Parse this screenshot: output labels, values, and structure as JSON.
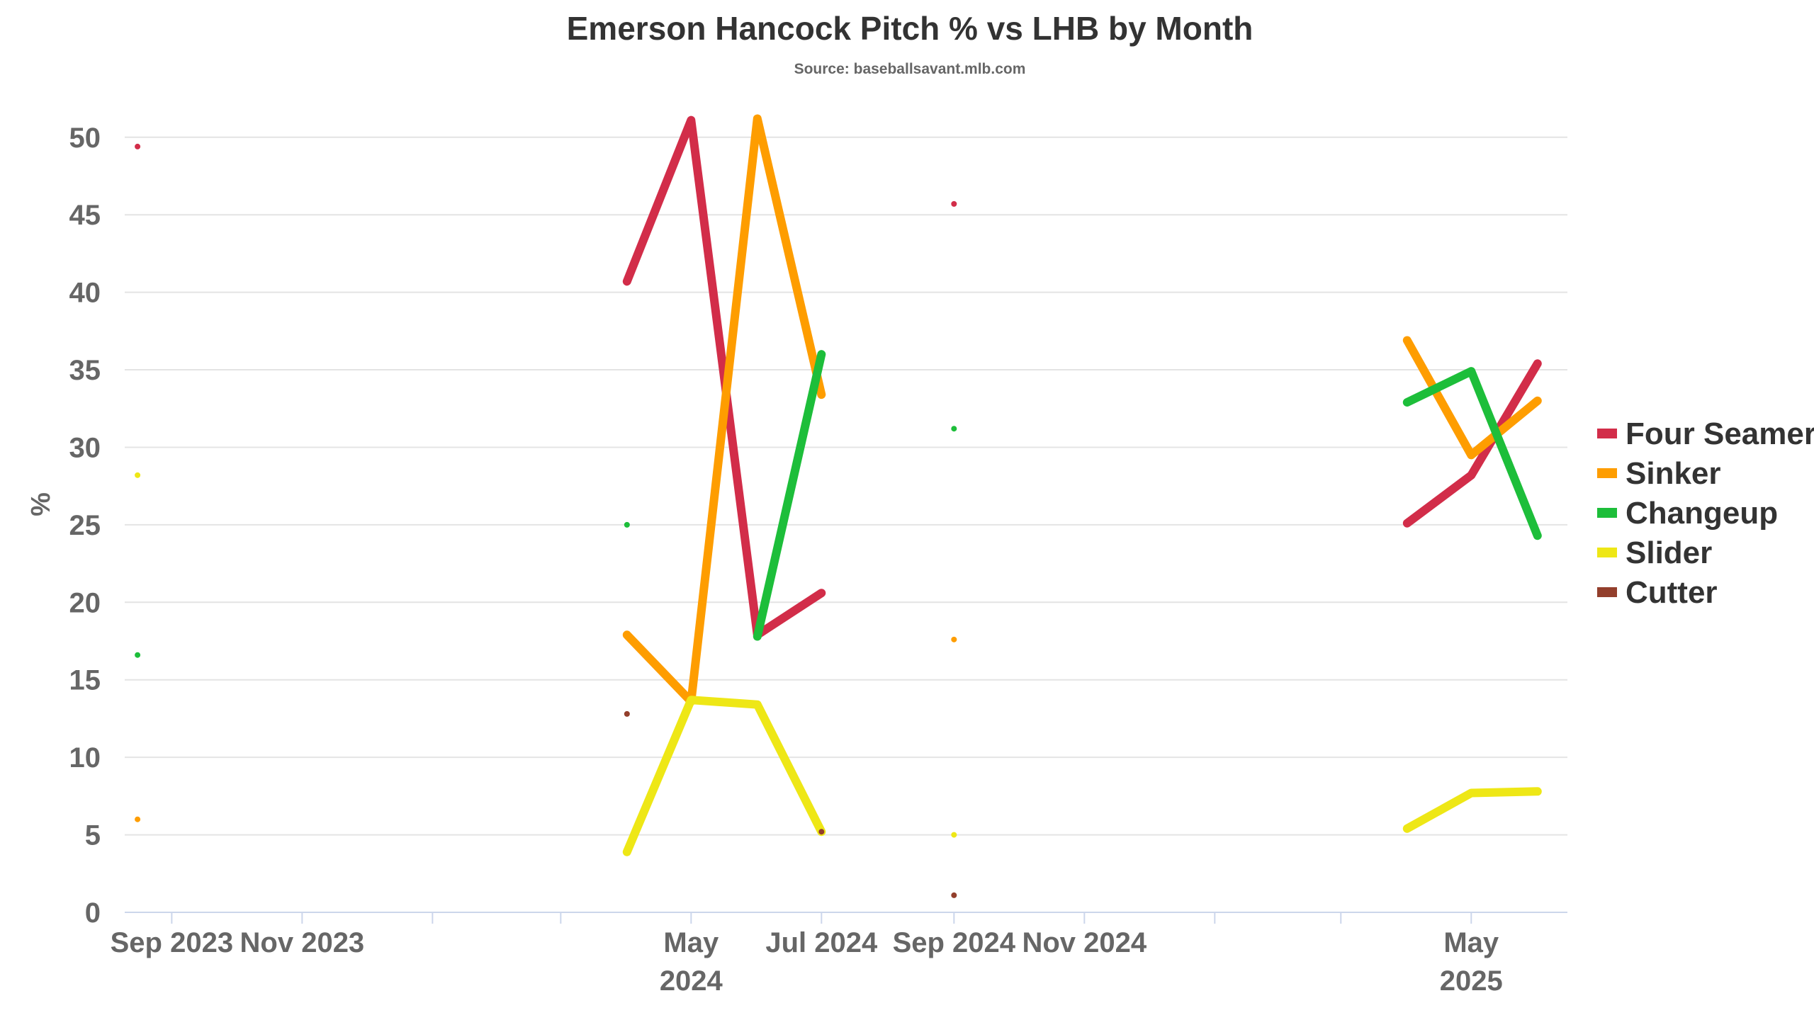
{
  "chart_data": {
    "type": "line",
    "title": "Emerson Hancock Pitch % vs LHB by Month",
    "subtitle": "Source: baseballsavant.mlb.com",
    "ylabel": "%",
    "xlabel": "",
    "ylim": [
      0,
      52
    ],
    "yticks": [
      0,
      5,
      10,
      15,
      20,
      25,
      30,
      35,
      40,
      45,
      50
    ],
    "xlim": [
      "2023-08-10",
      "2025-06-15"
    ],
    "xtick_labels": [
      {
        "date": "2023-09-01",
        "lines": [
          "Sep 2023"
        ]
      },
      {
        "date": "2023-11-01",
        "lines": [
          "Nov 2023"
        ]
      },
      {
        "date": "2024-05-01",
        "lines": [
          "May",
          "2024"
        ]
      },
      {
        "date": "2024-07-01",
        "lines": [
          "Jul 2024"
        ]
      },
      {
        "date": "2024-09-01",
        "lines": [
          "Sep 2024"
        ]
      },
      {
        "date": "2024-11-01",
        "lines": [
          "Nov 2024"
        ]
      },
      {
        "date": "2025-05-01",
        "lines": [
          "May",
          "2025"
        ]
      }
    ],
    "xtick_marks": [
      "2023-09-01",
      "2023-11-01",
      "2024-01-01",
      "2024-03-01",
      "2024-05-01",
      "2024-07-01",
      "2024-09-01",
      "2024-11-01",
      "2025-01-01",
      "2025-03-01",
      "2025-05-01"
    ],
    "grid": true,
    "legend_position": "right",
    "series": [
      {
        "name": "Four Seamer",
        "color": "#d22d49",
        "points": [
          {
            "x": "2023-08-16",
            "y": 49.4
          },
          {
            "x": "2024-04-01",
            "y": 40.7
          },
          {
            "x": "2024-05-01",
            "y": 51.1
          },
          {
            "x": "2024-06-01",
            "y": 17.9
          },
          {
            "x": "2024-07-01",
            "y": 20.6
          },
          {
            "x": "2024-09-01",
            "y": 45.7
          },
          {
            "x": "2025-04-01",
            "y": 25.1
          },
          {
            "x": "2025-05-01",
            "y": 28.2
          },
          {
            "x": "2025-06-01",
            "y": 35.4
          }
        ]
      },
      {
        "name": "Sinker",
        "color": "#fe9d00",
        "points": [
          {
            "x": "2023-08-16",
            "y": 6.0
          },
          {
            "x": "2024-04-01",
            "y": 17.9
          },
          {
            "x": "2024-05-01",
            "y": 13.6
          },
          {
            "x": "2024-06-01",
            "y": 51.2
          },
          {
            "x": "2024-07-01",
            "y": 33.4
          },
          {
            "x": "2024-09-01",
            "y": 17.6
          },
          {
            "x": "2025-04-01",
            "y": 36.9
          },
          {
            "x": "2025-05-01",
            "y": 29.5
          },
          {
            "x": "2025-06-01",
            "y": 33.0
          }
        ]
      },
      {
        "name": "Changeup",
        "color": "#1dbe3a",
        "points": [
          {
            "x": "2023-08-16",
            "y": 16.6
          },
          {
            "x": "2024-04-01",
            "y": 25.0
          },
          {
            "x": "2024-06-01",
            "y": 17.8
          },
          {
            "x": "2024-07-01",
            "y": 36.0
          },
          {
            "x": "2024-09-01",
            "y": 31.2
          },
          {
            "x": "2025-04-01",
            "y": 32.9
          },
          {
            "x": "2025-05-01",
            "y": 34.9
          },
          {
            "x": "2025-06-01",
            "y": 24.3
          }
        ]
      },
      {
        "name": "Slider",
        "color": "#eee716",
        "points": [
          {
            "x": "2023-08-16",
            "y": 28.2
          },
          {
            "x": "2024-04-01",
            "y": 3.9
          },
          {
            "x": "2024-05-01",
            "y": 13.7
          },
          {
            "x": "2024-06-01",
            "y": 13.4
          },
          {
            "x": "2024-07-01",
            "y": 5.2
          },
          {
            "x": "2024-09-01",
            "y": 5.0
          },
          {
            "x": "2025-04-01",
            "y": 5.4
          },
          {
            "x": "2025-05-01",
            "y": 7.7
          },
          {
            "x": "2025-06-01",
            "y": 7.8
          }
        ]
      },
      {
        "name": "Cutter",
        "color": "#933f2c",
        "points": [
          {
            "x": "2024-04-01",
            "y": 12.8
          },
          {
            "x": "2024-07-01",
            "y": 5.2
          },
          {
            "x": "2024-09-01",
            "y": 1.1
          }
        ]
      }
    ]
  }
}
